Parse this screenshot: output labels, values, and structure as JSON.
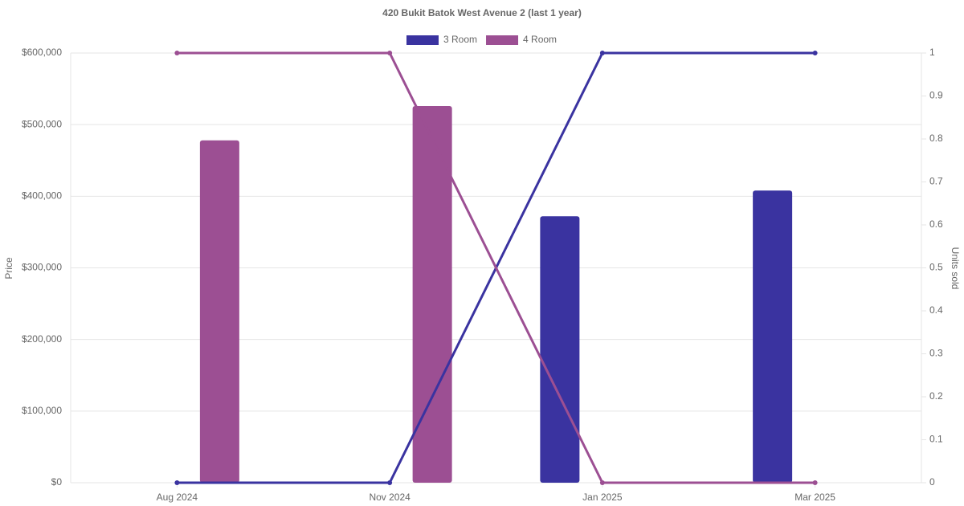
{
  "chart_data": {
    "type": "bar-line",
    "title": "420 Bukit Batok West Avenue 2 (last 1 year)",
    "categories": [
      "Aug 2024",
      "Nov 2024",
      "Jan 2025",
      "Mar 2025"
    ],
    "y_label": "Price",
    "y2_label": "Units sold",
    "series": [
      {
        "name": "3 Room",
        "color": "#3a33a0",
        "values": [
          null,
          null,
          372000,
          408000
        ],
        "units_sold": [
          0,
          0,
          1,
          1
        ]
      },
      {
        "name": "4 Room",
        "color": "#9c4f93",
        "values": [
          478000,
          526000,
          null,
          null
        ],
        "units_sold": [
          1,
          1,
          0,
          0
        ]
      }
    ],
    "ylim": [
      0,
      600000
    ],
    "yticks": [
      {
        "value": 0,
        "label": "$0"
      },
      {
        "value": 100000,
        "label": "$100,000"
      },
      {
        "value": 200000,
        "label": "$200,000"
      },
      {
        "value": 300000,
        "label": "$300,000"
      },
      {
        "value": 400000,
        "label": "$400,000"
      },
      {
        "value": 500000,
        "label": "$500,000"
      },
      {
        "value": 600000,
        "label": "$600,000"
      }
    ],
    "y2lim": [
      0,
      1
    ],
    "y2ticks": [
      0,
      0.1,
      0.2,
      0.3,
      0.4,
      0.5,
      0.6,
      0.7,
      0.8,
      0.9,
      1
    ],
    "grid": true
  }
}
